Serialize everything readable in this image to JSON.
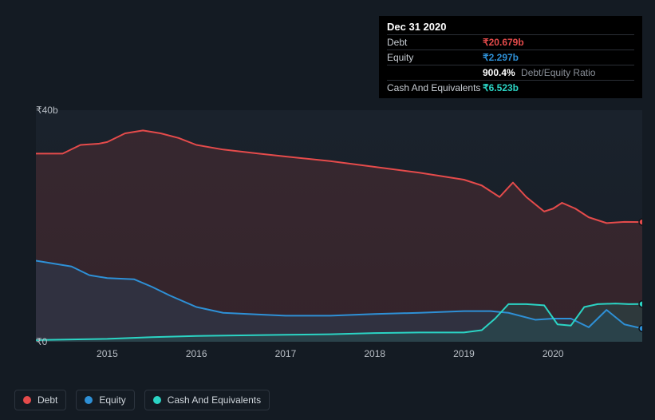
{
  "tooltip": {
    "date": "Dec 31 2020",
    "rows": [
      {
        "label": "Debt",
        "value": "₹20.679b",
        "color": "#e54b4b"
      },
      {
        "label": "Equity",
        "value": "₹2.297b",
        "color": "#2e90d6"
      },
      {
        "label": "",
        "value": "900.4%",
        "sub": "Debt/Equity Ratio",
        "color": "#ffffff"
      },
      {
        "label": "Cash And Equivalents",
        "value": "₹6.523b",
        "color": "#2bd4c4"
      }
    ]
  },
  "chart": {
    "type": "area",
    "background_color": "#141b23",
    "plot_background": "#1a222c",
    "grid_color": "#2a3038",
    "ylim": [
      0,
      40
    ],
    "yticks": [
      {
        "v": 40,
        "label": "₹40b"
      },
      {
        "v": 0,
        "label": "₹0"
      }
    ],
    "xdomain": [
      2014.2,
      2021
    ],
    "xticks": [
      2015,
      2016,
      2017,
      2018,
      2019,
      2020
    ],
    "tick_fontsize": 12,
    "tick_color": "#b8bec5",
    "line_width": 2,
    "fill_opacity": 0.3,
    "series": [
      {
        "name": "Debt",
        "color": "#e54b4b",
        "fill_color": "#7b3438",
        "points": [
          [
            2014.2,
            32.5
          ],
          [
            2014.5,
            32.5
          ],
          [
            2014.7,
            34.0
          ],
          [
            2014.9,
            34.2
          ],
          [
            2015.0,
            34.5
          ],
          [
            2015.2,
            36.0
          ],
          [
            2015.4,
            36.5
          ],
          [
            2015.6,
            36.0
          ],
          [
            2015.8,
            35.2
          ],
          [
            2016.0,
            34.0
          ],
          [
            2016.3,
            33.2
          ],
          [
            2016.7,
            32.5
          ],
          [
            2017.0,
            32.0
          ],
          [
            2017.5,
            31.2
          ],
          [
            2018.0,
            30.2
          ],
          [
            2018.5,
            29.2
          ],
          [
            2019.0,
            28.0
          ],
          [
            2019.2,
            27.0
          ],
          [
            2019.4,
            25.0
          ],
          [
            2019.55,
            27.5
          ],
          [
            2019.7,
            25.0
          ],
          [
            2019.9,
            22.5
          ],
          [
            2020.0,
            23.0
          ],
          [
            2020.1,
            24.0
          ],
          [
            2020.25,
            23.0
          ],
          [
            2020.4,
            21.5
          ],
          [
            2020.6,
            20.5
          ],
          [
            2020.8,
            20.7
          ],
          [
            2021.0,
            20.679
          ]
        ]
      },
      {
        "name": "Equity",
        "color": "#2e90d6",
        "fill_color": "#24506f",
        "points": [
          [
            2014.2,
            14.0
          ],
          [
            2014.4,
            13.5
          ],
          [
            2014.6,
            13.0
          ],
          [
            2014.8,
            11.5
          ],
          [
            2015.0,
            11.0
          ],
          [
            2015.3,
            10.8
          ],
          [
            2015.5,
            9.5
          ],
          [
            2015.7,
            8.0
          ],
          [
            2016.0,
            6.0
          ],
          [
            2016.3,
            5.0
          ],
          [
            2016.7,
            4.7
          ],
          [
            2017.0,
            4.5
          ],
          [
            2017.5,
            4.5
          ],
          [
            2018.0,
            4.8
          ],
          [
            2018.5,
            5.0
          ],
          [
            2019.0,
            5.3
          ],
          [
            2019.3,
            5.3
          ],
          [
            2019.5,
            5.0
          ],
          [
            2019.8,
            3.8
          ],
          [
            2020.0,
            4.0
          ],
          [
            2020.2,
            4.0
          ],
          [
            2020.4,
            2.5
          ],
          [
            2020.6,
            5.5
          ],
          [
            2020.8,
            3.0
          ],
          [
            2021.0,
            2.297
          ]
        ]
      },
      {
        "name": "Cash And Equivalents",
        "color": "#2bd4c4",
        "fill_color": "#1f6a64",
        "points": [
          [
            2014.2,
            0.3
          ],
          [
            2014.6,
            0.4
          ],
          [
            2015.0,
            0.5
          ],
          [
            2015.5,
            0.8
          ],
          [
            2016.0,
            1.0
          ],
          [
            2016.5,
            1.1
          ],
          [
            2017.0,
            1.2
          ],
          [
            2017.5,
            1.3
          ],
          [
            2018.0,
            1.5
          ],
          [
            2018.5,
            1.6
          ],
          [
            2019.0,
            1.6
          ],
          [
            2019.2,
            2.0
          ],
          [
            2019.35,
            4.0
          ],
          [
            2019.5,
            6.5
          ],
          [
            2019.7,
            6.5
          ],
          [
            2019.9,
            6.3
          ],
          [
            2020.05,
            3.0
          ],
          [
            2020.2,
            2.8
          ],
          [
            2020.35,
            6.0
          ],
          [
            2020.5,
            6.5
          ],
          [
            2020.7,
            6.6
          ],
          [
            2020.85,
            6.5
          ],
          [
            2021.0,
            6.523
          ]
        ]
      }
    ],
    "markers": [
      {
        "series": "Debt",
        "x": 2021.0,
        "y": 20.679
      },
      {
        "series": "Equity",
        "x": 2021.0,
        "y": 2.297
      },
      {
        "series": "Cash And Equivalents",
        "x": 2021.0,
        "y": 6.523
      }
    ]
  },
  "legend": {
    "items": [
      {
        "label": "Debt",
        "color": "#e54b4b"
      },
      {
        "label": "Equity",
        "color": "#2e90d6"
      },
      {
        "label": "Cash And Equivalents",
        "color": "#2bd4c4"
      }
    ]
  }
}
